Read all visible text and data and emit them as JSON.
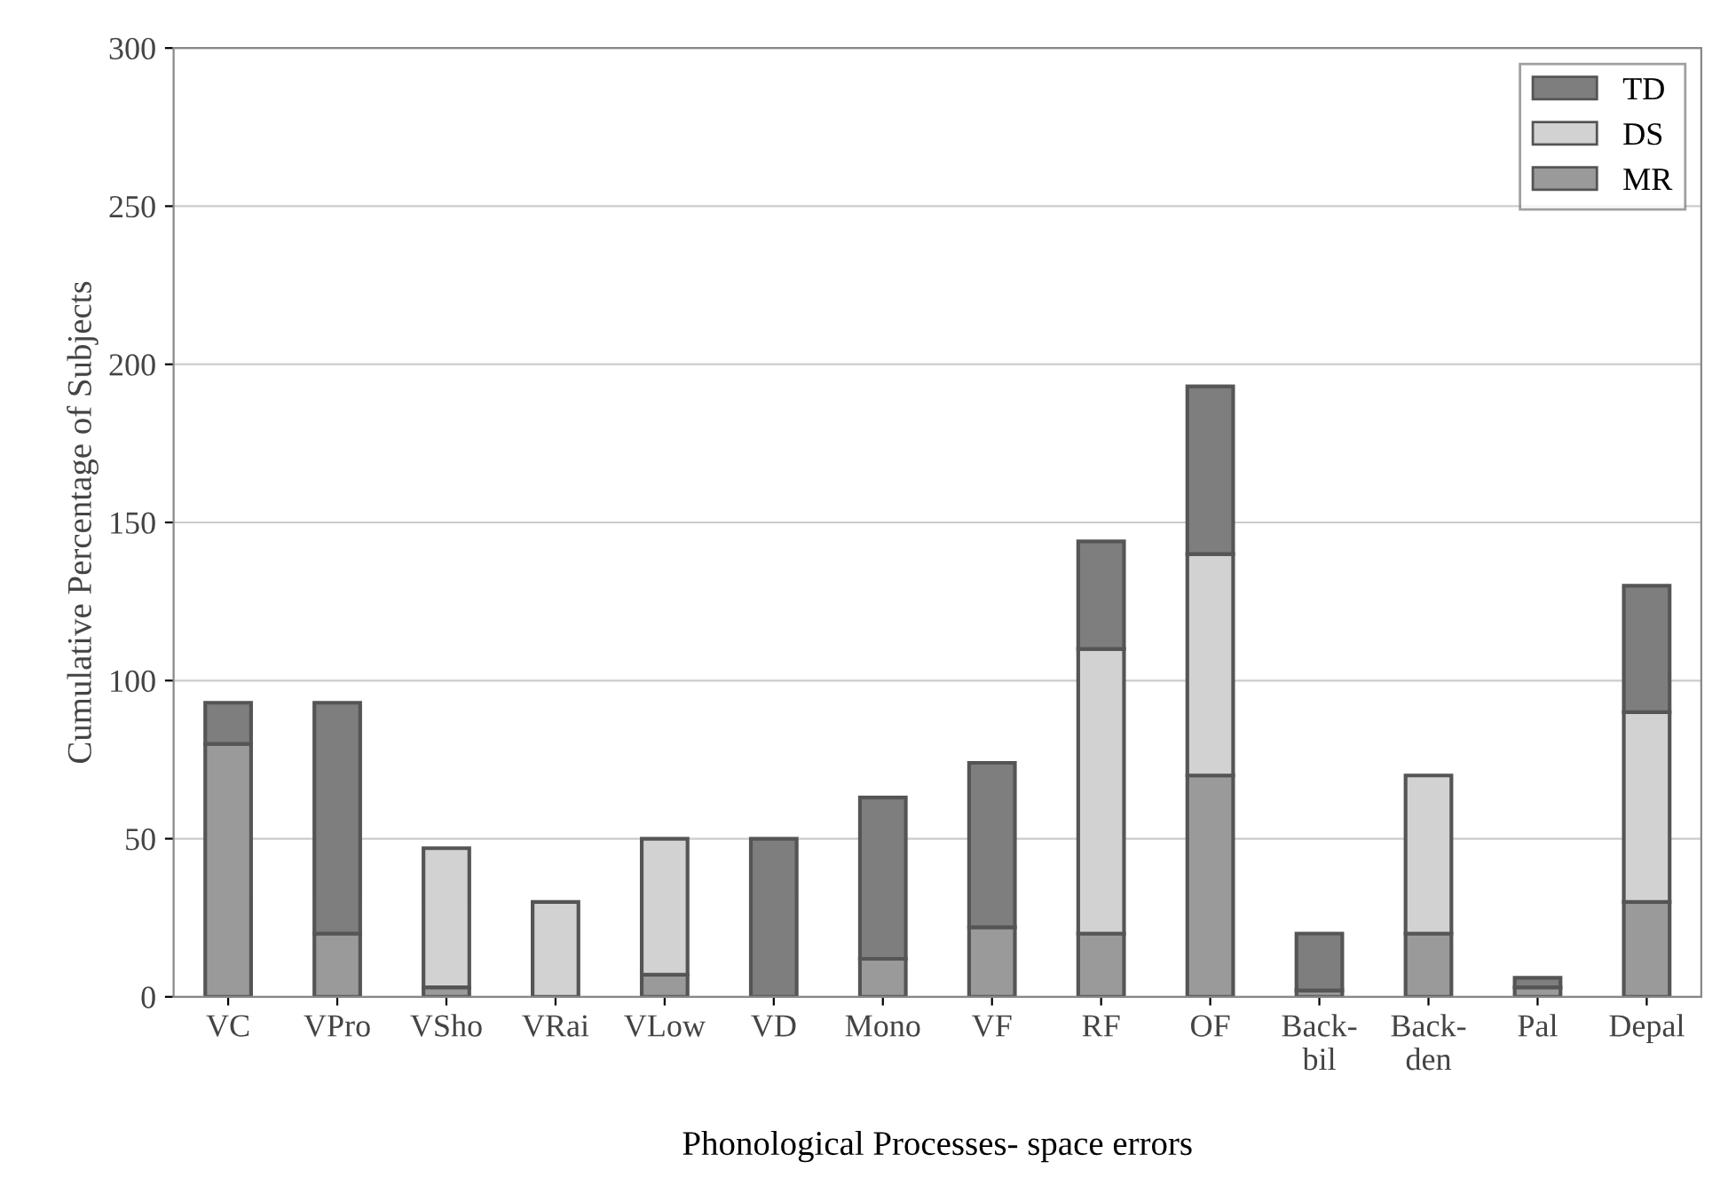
{
  "chart_data": {
    "type": "bar",
    "stacked": true,
    "xlabel": "Phonological Processes- space errors",
    "ylabel": "Cumulative Percentage of Subjects",
    "categories": [
      "VC",
      "VPro",
      "VSho",
      "VRai",
      "VLow",
      "VD",
      "Mono",
      "VF",
      "RF",
      "OF",
      "Back-\nbil",
      "Back-\nden",
      "Pal",
      "Depal"
    ],
    "series": [
      {
        "name": "MR",
        "color": "#9a9a9a",
        "values": [
          80,
          20,
          3,
          null,
          7,
          null,
          12,
          22,
          20,
          70,
          2,
          20,
          3,
          30
        ]
      },
      {
        "name": "DS",
        "color": "#d2d2d2",
        "values": [
          null,
          null,
          44,
          30,
          43,
          null,
          null,
          null,
          90,
          70,
          null,
          50,
          null,
          60
        ]
      },
      {
        "name": "TD",
        "color": "#7e7e7e",
        "values": [
          13,
          73,
          null,
          null,
          null,
          50,
          51,
          52,
          34,
          53,
          18,
          null,
          3,
          40
        ]
      }
    ],
    "ylim": [
      0,
      300
    ],
    "yticks": [
      0,
      50,
      100,
      150,
      200,
      250,
      300
    ],
    "grid": "y",
    "legend": "top right"
  }
}
